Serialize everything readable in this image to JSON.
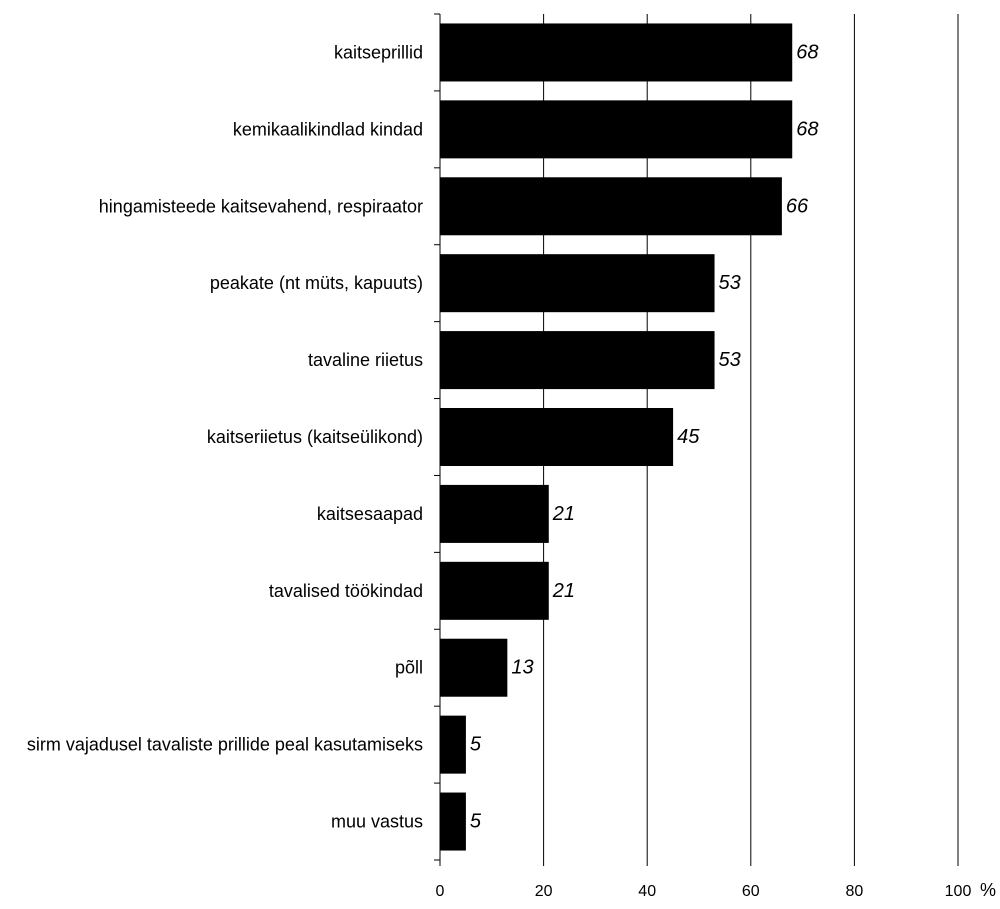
{
  "chart_data": {
    "type": "bar",
    "orientation": "horizontal",
    "categories": [
      "kaitseprillid",
      "kemikaalikindlad kindad",
      "hingamisteede kaitsevahend, respiraator",
      "peakate (nt müts, kapuuts)",
      "tavaline riietus",
      "kaitseriietus (kaitseülikond)",
      "kaitsesaapad",
      "tavalised töökindad",
      "põll",
      "sirm vajadusel tavaliste prillide peal kasutamiseks",
      "muu vastus"
    ],
    "values": [
      68,
      68,
      66,
      53,
      53,
      45,
      21,
      21,
      13,
      5,
      5
    ],
    "value_labels": [
      "68",
      "68",
      "66",
      "53",
      "53",
      "45",
      "21",
      "21",
      "13",
      "5",
      "5"
    ],
    "xlim": [
      0,
      100
    ],
    "xticks": [
      "0",
      "20",
      "40",
      "60",
      "80",
      "100"
    ],
    "unit": "%",
    "bar_color": "#000000",
    "grid": true,
    "legend": false
  }
}
